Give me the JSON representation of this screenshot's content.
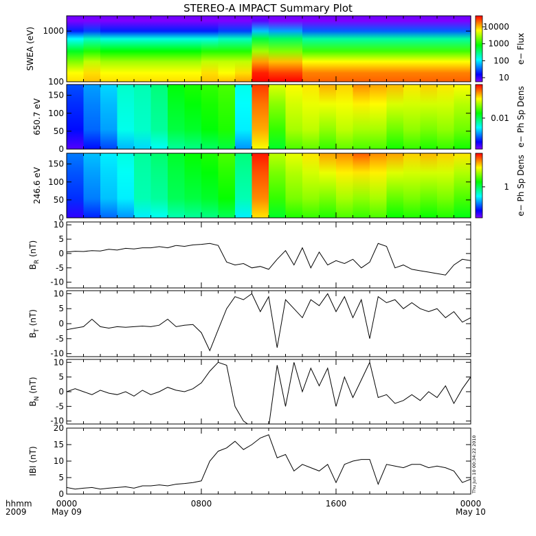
{
  "title": "STEREO-A IMPACT Summary Plot",
  "timestamp": "Thu Jun 10 00:34:22 2010",
  "x_axis": {
    "row1_label": "hhmm",
    "row2_label": "2009",
    "ticks": [
      {
        "hour": 0,
        "label": "0000",
        "sublabel": "May 09"
      },
      {
        "hour": 8,
        "label": "0800",
        "sublabel": ""
      },
      {
        "hour": 16,
        "label": "1600",
        "sublabel": ""
      },
      {
        "hour": 24,
        "label": "0000",
        "sublabel": "May 10"
      }
    ]
  },
  "colors": {
    "colormap": [
      "#7f00ff",
      "#0000ff",
      "#0080ff",
      "#00ffff",
      "#00ff80",
      "#00ff00",
      "#80ff00",
      "#ffff00",
      "#ff8000",
      "#ff0000"
    ],
    "line": "#000000"
  },
  "chart_data": [
    {
      "id": "swea",
      "type": "heatmap",
      "ylabel": "SWEA (eV)",
      "yscale": "log",
      "yrange": [
        100,
        2000
      ],
      "yticks": [
        "100",
        "1000"
      ],
      "colorbar_label": "e− Flux",
      "colorbar_ticks": [
        "10",
        "100",
        "1000",
        "10000"
      ],
      "x": [
        0,
        1,
        2,
        3,
        5,
        6,
        8,
        9,
        10,
        11,
        12,
        14,
        16,
        18,
        20,
        22,
        24
      ],
      "energy": [
        100,
        150,
        250,
        400,
        700,
        1000,
        1600
      ],
      "flux_log10": [
        [
          3.6,
          3.5,
          3.1,
          2.6,
          1.9,
          1.2,
          0.4
        ],
        [
          3.7,
          3.6,
          3.3,
          2.8,
          2.1,
          1.3,
          0.5
        ],
        [
          3.6,
          3.5,
          3.2,
          2.7,
          2.0,
          1.2,
          0.4
        ],
        [
          3.6,
          3.5,
          3.2,
          2.7,
          2.0,
          1.2,
          0.4
        ],
        [
          3.6,
          3.5,
          3.2,
          2.7,
          2.0,
          1.2,
          0.4
        ],
        [
          3.6,
          3.5,
          3.2,
          2.7,
          2.0,
          1.2,
          0.4
        ],
        [
          3.7,
          3.6,
          3.3,
          2.8,
          2.0,
          1.2,
          0.4
        ],
        [
          3.7,
          3.5,
          3.3,
          2.8,
          2.1,
          1.3,
          0.4
        ],
        [
          3.8,
          3.6,
          3.3,
          2.8,
          2.1,
          1.3,
          0.5
        ],
        [
          4.4,
          4.2,
          3.8,
          3.2,
          2.5,
          1.7,
          0.8
        ],
        [
          4.3,
          4.1,
          3.7,
          3.1,
          2.4,
          1.6,
          0.7
        ],
        [
          4.0,
          3.9,
          3.5,
          2.9,
          2.2,
          1.4,
          0.5
        ],
        [
          4.0,
          3.9,
          3.5,
          2.9,
          2.2,
          1.4,
          0.5
        ],
        [
          4.0,
          3.9,
          3.5,
          2.9,
          2.2,
          1.4,
          0.5
        ],
        [
          4.0,
          3.9,
          3.5,
          2.9,
          2.2,
          1.4,
          0.5
        ],
        [
          4.0,
          3.9,
          3.5,
          2.9,
          2.2,
          1.4,
          0.5
        ],
        [
          4.0,
          3.9,
          3.5,
          3.0,
          2.2,
          1.4,
          0.5
        ]
      ],
      "color_range_log10": [
        0.7,
        4.3
      ]
    },
    {
      "id": "pad650",
      "type": "heatmap",
      "ylabel": "650.7 eV",
      "yrange": [
        0,
        180
      ],
      "yticks": [
        "0",
        "50",
        "100",
        "150"
      ],
      "colorbar_label": "e− Ph Sp Dens",
      "colorbar_ticks": [
        "0.01"
      ],
      "x": [
        0,
        1,
        2,
        3,
        4,
        5,
        6,
        7,
        8,
        9,
        10,
        11,
        12,
        13,
        14,
        15,
        16,
        17,
        18,
        19,
        20,
        21,
        22,
        23,
        24
      ],
      "level_low_pitch": [
        0.12,
        0.2,
        0.25,
        0.35,
        0.38,
        0.42,
        0.5,
        0.52,
        0.55,
        0.58,
        0.32,
        0.85,
        0.6,
        0.7,
        0.72,
        0.68,
        0.72,
        0.7,
        0.7,
        0.65,
        0.68,
        0.66,
        0.68,
        0.65,
        0.6
      ],
      "level_high_pitch": [
        0.18,
        0.25,
        0.3,
        0.38,
        0.4,
        0.45,
        0.55,
        0.58,
        0.6,
        0.62,
        0.35,
        0.95,
        0.75,
        0.78,
        0.8,
        0.85,
        0.82,
        0.88,
        0.86,
        0.84,
        0.8,
        0.82,
        0.8,
        0.78,
        0.72
      ]
    },
    {
      "id": "pad246",
      "type": "heatmap",
      "ylabel": "246.6 eV",
      "yrange": [
        0,
        180
      ],
      "yticks": [
        "0",
        "50",
        "100",
        "150"
      ],
      "colorbar_label": "e− Ph Sp Dens",
      "colorbar_ticks": [
        "1"
      ],
      "x": [
        0,
        1,
        2,
        3,
        4,
        5,
        6,
        7,
        8,
        9,
        10,
        11,
        12,
        13,
        14,
        15,
        16,
        17,
        18,
        19,
        20,
        21,
        22,
        23,
        24
      ],
      "level_low_pitch": [
        0.15,
        0.22,
        0.28,
        0.32,
        0.4,
        0.42,
        0.48,
        0.5,
        0.52,
        0.56,
        0.4,
        0.88,
        0.6,
        0.66,
        0.68,
        0.66,
        0.7,
        0.68,
        0.7,
        0.64,
        0.66,
        0.64,
        0.66,
        0.62,
        0.58
      ],
      "level_high_pitch": [
        0.22,
        0.28,
        0.32,
        0.36,
        0.42,
        0.46,
        0.52,
        0.56,
        0.58,
        0.62,
        0.45,
        0.98,
        0.72,
        0.76,
        0.8,
        0.86,
        0.88,
        0.92,
        0.88,
        0.86,
        0.82,
        0.84,
        0.82,
        0.8,
        0.74
      ]
    },
    {
      "id": "br",
      "type": "line",
      "ylabel": "B_R (nT)",
      "ylabel_main": "B",
      "ylabel_sub": "R",
      "ylabel_unit": "(nT)",
      "yrange": [
        -12,
        11
      ],
      "yticks": [
        10,
        5,
        0,
        -5,
        -10
      ],
      "x": [
        0,
        0.5,
        1,
        1.5,
        2,
        2.5,
        3,
        3.5,
        4,
        4.5,
        5,
        5.5,
        6,
        6.5,
        7,
        7.5,
        8,
        8.5,
        9,
        9.5,
        10,
        10.5,
        11,
        11.5,
        12,
        12.5,
        13,
        13.5,
        14,
        14.5,
        15,
        15.5,
        16,
        16.5,
        17,
        17.5,
        18,
        18.5,
        19,
        19.5,
        20,
        20.5,
        21,
        21.5,
        22,
        22.5,
        23,
        23.5,
        24
      ],
      "y": [
        0.5,
        0.8,
        0.7,
        1.0,
        0.9,
        1.5,
        1.2,
        1.8,
        1.6,
        2.0,
        2.0,
        2.4,
        2.0,
        2.8,
        2.5,
        3.0,
        3.2,
        3.5,
        2.8,
        -3.0,
        -4.0,
        -3.5,
        -5.0,
        -4.5,
        -5.5,
        -2.0,
        1.0,
        -4.0,
        2.0,
        -5.0,
        0.5,
        -4.0,
        -2.5,
        -3.5,
        -2.0,
        -5.0,
        -3.0,
        3.5,
        2.5,
        -5.0,
        -4.0,
        -5.5,
        -6.0,
        -6.5,
        -7.0,
        -7.5,
        -4.0,
        -2.0,
        -2.5
      ]
    },
    {
      "id": "bt",
      "type": "line",
      "ylabel": "B_T (nT)",
      "ylabel_main": "B",
      "ylabel_sub": "T",
      "ylabel_unit": "(nT)",
      "yrange": [
        -11,
        11
      ],
      "yticks": [
        10,
        5,
        0,
        -5,
        -10
      ],
      "x": [
        0,
        0.5,
        1,
        1.5,
        2,
        2.5,
        3,
        3.5,
        4,
        4.5,
        5,
        5.5,
        6,
        6.5,
        7,
        7.5,
        8,
        8.5,
        9,
        9.5,
        10,
        10.5,
        11,
        11.5,
        12,
        12.5,
        13,
        13.5,
        14,
        14.5,
        15,
        15.5,
        16,
        16.5,
        17,
        17.5,
        18,
        18.5,
        19,
        19.5,
        20,
        20.5,
        21,
        21.5,
        22,
        22.5,
        23,
        23.5,
        24
      ],
      "y": [
        -2.0,
        -1.5,
        -1.0,
        1.5,
        -1.0,
        -1.5,
        -1.0,
        -1.2,
        -1.0,
        -0.8,
        -1.0,
        -0.5,
        1.5,
        -1.0,
        -0.5,
        -0.3,
        -3.0,
        -9.0,
        -2.0,
        5.0,
        9.0,
        8.0,
        10.0,
        4.0,
        9.0,
        -8.0,
        8.0,
        5.0,
        2.0,
        8.0,
        6.0,
        10.0,
        4.0,
        9.0,
        2.0,
        8.0,
        -5.0,
        9.0,
        7.0,
        8.0,
        5.0,
        7.0,
        5.0,
        4.0,
        5.0,
        2.0,
        4.0,
        0.5,
        2.0
      ]
    },
    {
      "id": "bn",
      "type": "line",
      "ylabel": "B_N (nT)",
      "ylabel_main": "B",
      "ylabel_sub": "N",
      "ylabel_unit": "(nT)",
      "yrange": [
        -11,
        11
      ],
      "yticks": [
        10,
        5,
        0,
        -5,
        -10
      ],
      "x": [
        0,
        0.5,
        1,
        1.5,
        2,
        2.5,
        3,
        3.5,
        4,
        4.5,
        5,
        5.5,
        6,
        6.5,
        7,
        7.5,
        8,
        8.5,
        9,
        9.5,
        10,
        10.5,
        11,
        11.5,
        12,
        12.5,
        13,
        13.5,
        14,
        14.5,
        15,
        15.5,
        16,
        16.5,
        17,
        17.5,
        18,
        18.5,
        19,
        19.5,
        20,
        20.5,
        21,
        21.5,
        22,
        22.5,
        23,
        23.5,
        24
      ],
      "y": [
        0.0,
        1.0,
        0.0,
        -1.0,
        0.5,
        -0.5,
        -1.0,
        0.0,
        -1.5,
        0.5,
        -1.0,
        0.0,
        1.5,
        0.5,
        0.0,
        1.0,
        3.0,
        7.0,
        10.0,
        9.0,
        -5.0,
        -10.0,
        -12.0,
        -11.0,
        -12.0,
        9.0,
        -5.0,
        10.0,
        0.0,
        8.0,
        2.0,
        8.0,
        -5.0,
        5.0,
        -2.0,
        4.0,
        10.0,
        -2.0,
        -1.0,
        -4.0,
        -3.0,
        -1.0,
        -3.0,
        0.0,
        -2.0,
        2.0,
        -4.0,
        1.0,
        5.0
      ]
    },
    {
      "id": "bmag",
      "type": "line",
      "ylabel": "|B| (nT)",
      "ylabel_text": "IBI (nT)",
      "yrange": [
        0,
        20
      ],
      "yticks": [
        20,
        15,
        10,
        5,
        0
      ],
      "x": [
        0,
        0.5,
        1,
        1.5,
        2,
        2.5,
        3,
        3.5,
        4,
        4.5,
        5,
        5.5,
        6,
        6.5,
        7,
        7.5,
        8,
        8.5,
        9,
        9.5,
        10,
        10.5,
        11,
        11.5,
        12,
        12.5,
        13,
        13.5,
        14,
        14.5,
        15,
        15.5,
        16,
        16.5,
        17,
        17.5,
        18,
        18.5,
        19,
        19.5,
        20,
        20.5,
        21,
        21.5,
        22,
        22.5,
        23,
        23.5,
        24
      ],
      "y": [
        2.0,
        1.5,
        1.8,
        2.0,
        1.5,
        1.8,
        2.0,
        2.2,
        1.8,
        2.5,
        2.5,
        2.8,
        2.5,
        3.0,
        3.2,
        3.5,
        4.0,
        10.0,
        13.0,
        14.0,
        16.0,
        13.5,
        15.0,
        17.0,
        18.0,
        11.0,
        12.0,
        7.0,
        9.0,
        8.0,
        7.0,
        9.0,
        3.5,
        9.0,
        10.0,
        10.5,
        10.5,
        3.0,
        9.0,
        8.5,
        8.0,
        9.0,
        9.0,
        8.0,
        8.5,
        8.0,
        7.0,
        3.5,
        4.5
      ]
    }
  ]
}
